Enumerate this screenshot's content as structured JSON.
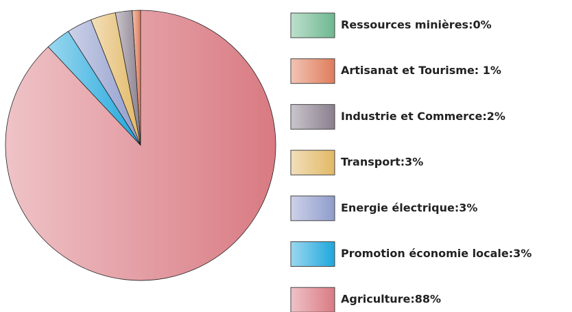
{
  "chart_data": {
    "type": "pie",
    "categories": [
      "Ressources minières:0%",
      "Artisanat et Tourisme: 1%",
      "Industrie et Commerce:2%",
      "Transport:3%",
      "Energie électrique:3%",
      "Promotion économie locale:3%",
      "Agriculture:88%"
    ],
    "values": [
      0,
      1,
      2,
      3,
      3,
      3,
      88
    ],
    "colors": [
      "#6db890",
      "#e07c5a",
      "#8a7f8e",
      "#e2b865",
      "#8f9ccc",
      "#1fa7dc",
      "#d97a82"
    ]
  }
}
